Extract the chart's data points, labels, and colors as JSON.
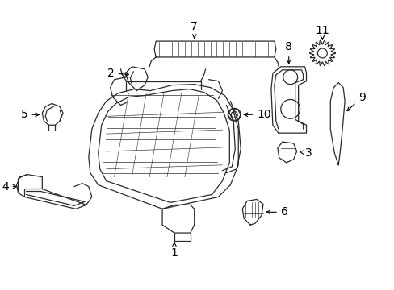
{
  "bg_color": "#ffffff",
  "line_color": "#2a2a2a",
  "label_color": "#000000",
  "font_size": 10,
  "figsize": [
    4.89,
    3.6
  ],
  "dpi": 100
}
